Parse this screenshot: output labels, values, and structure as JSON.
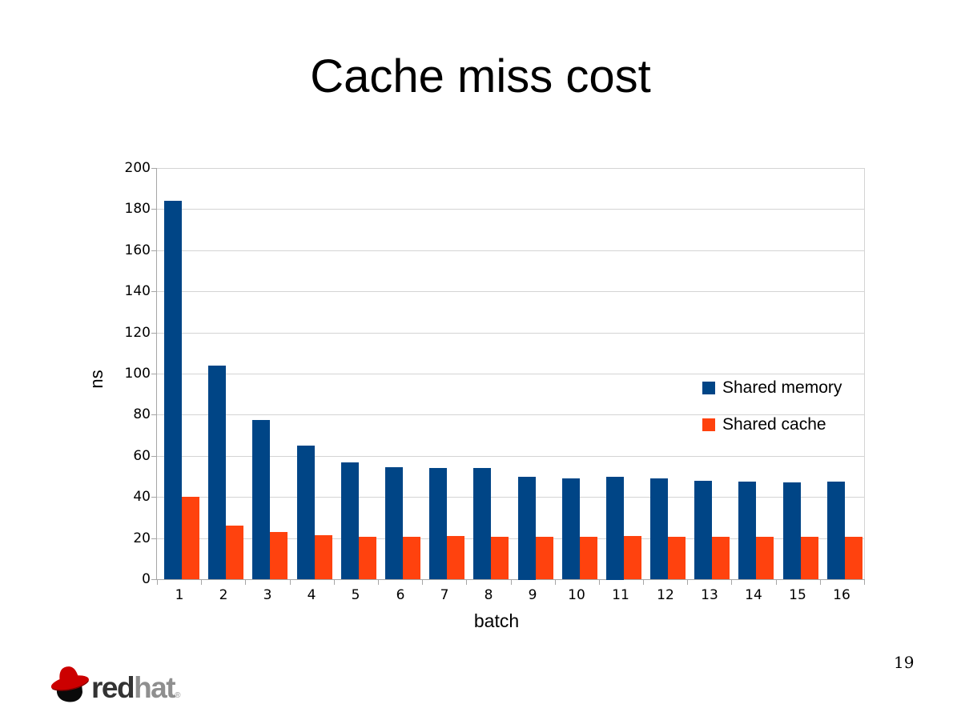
{
  "slide": {
    "title": "Cache miss cost",
    "page_number": "19"
  },
  "logo": {
    "word_red": "red",
    "word_hat": "hat",
    "trademark": "®"
  },
  "chart_data": {
    "type": "bar",
    "title": "",
    "xlabel": "batch",
    "ylabel": "ns",
    "categories": [
      "1",
      "2",
      "3",
      "4",
      "5",
      "6",
      "7",
      "8",
      "9",
      "10",
      "11",
      "12",
      "13",
      "14",
      "15",
      "16"
    ],
    "series": [
      {
        "name": "Shared memory",
        "color": "#004586",
        "values": [
          184,
          104,
          77.5,
          65,
          57,
          54.5,
          54,
          54,
          50,
          49,
          50,
          49,
          48,
          47.5,
          47,
          47.5
        ]
      },
      {
        "name": "Shared cache",
        "color": "#FF420E",
        "values": [
          40,
          26,
          23,
          21.5,
          20.5,
          20.5,
          21,
          20.5,
          20.5,
          20.5,
          21,
          20.5,
          20.5,
          20.5,
          20.5,
          20.5
        ]
      }
    ],
    "ylim": [
      0,
      200
    ],
    "ytick_step": 20,
    "grid": "horizontal",
    "legend_position": "inside-right"
  }
}
